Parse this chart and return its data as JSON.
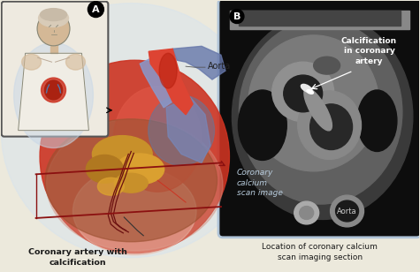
{
  "bg_color": "#ece9dc",
  "fig_width": 4.75,
  "fig_height": 3.08,
  "dpi": 100,
  "label_A": "A",
  "label_B": "B",
  "aorta_label": "Aorta",
  "calc_label": "Calcification\nin coronary\nartery",
  "scan_label": "Coronary\ncalcium\nscan image",
  "aorta_scan_label": "Aorta",
  "bottom_left_bold": "Coronary artery with\ncalcification",
  "bottom_left_dash": "—",
  "bottom_right_label": "Location of coronary calcium\nscan imaging section",
  "panel_b_bg": "#0d0d0d",
  "panel_b_border": "#b0c4d8",
  "arrow_color": "#8b1010",
  "text_white": "#ffffff",
  "text_dark": "#1a1a1a",
  "heart_red1": "#cc3322",
  "heart_red2": "#aa2211",
  "heart_pink": "#e8a090",
  "heart_blue1": "#6677aa",
  "heart_blue2": "#8899bb",
  "heart_blue3": "#99aacc",
  "heart_gold1": "#c8902a",
  "heart_gold2": "#daa030",
  "heart_gold3": "#b07820",
  "heart_brown": "#9b5030",
  "aorta_red": "#dd4433",
  "aorta_blue": "#7788bb",
  "body_bg": "#e0d8cc",
  "inset_bg": "#f0ede5",
  "inset_border": "#444444",
  "person_skin": "#d4b896",
  "person_hair": "#c8b090",
  "ct_body": "#6a6a6a",
  "ct_heart": "#8a8a8a",
  "ct_bright": "#aaaaaa",
  "ct_lv": "#505050",
  "ct_rv": "#484848",
  "ct_aorta_wall": "#888888",
  "ct_aorta_lumen": "#282828",
  "ct_calc": "#f0f0f0",
  "ct_spine": "#bbbbbb"
}
